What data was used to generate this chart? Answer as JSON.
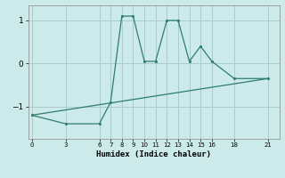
{
  "line1_x": [
    0,
    3,
    6,
    7,
    8,
    9,
    10,
    11,
    12,
    13,
    14,
    15,
    16,
    18,
    21
  ],
  "line1_y": [
    -1.2,
    -1.4,
    -1.4,
    -0.9,
    1.1,
    1.1,
    0.05,
    0.05,
    1.0,
    1.0,
    0.05,
    0.4,
    0.05,
    -0.35,
    -0.35
  ],
  "line2_x": [
    0,
    21
  ],
  "line2_y": [
    -1.2,
    -0.35
  ],
  "color": "#2e7d6e",
  "bg_color": "#cceaea",
  "grid_color": "#aacccc",
  "xlabel": "Humidex (Indice chaleur)",
  "xticks": [
    0,
    3,
    6,
    7,
    8,
    9,
    10,
    11,
    12,
    13,
    14,
    15,
    16,
    18,
    21
  ],
  "yticks": [
    -1,
    0,
    1
  ],
  "ylim": [
    -1.75,
    1.35
  ],
  "xlim": [
    -0.3,
    22
  ]
}
